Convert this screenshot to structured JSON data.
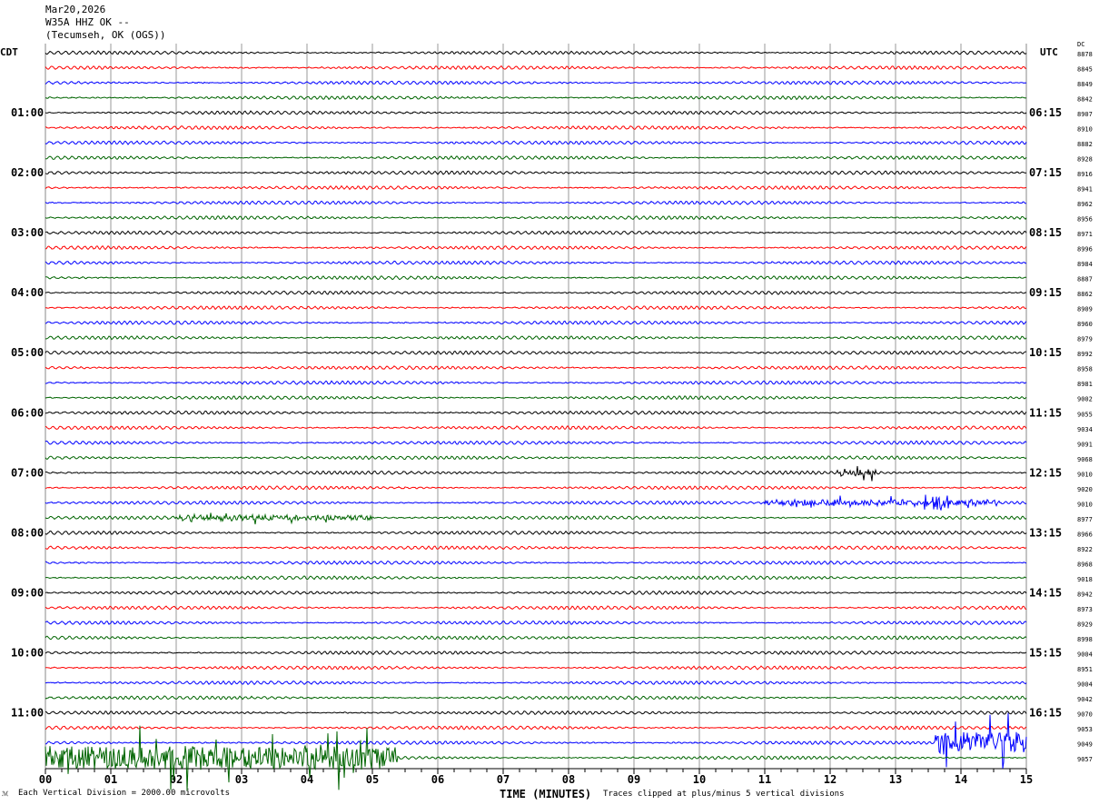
{
  "header": {
    "date": "Mar20,2026",
    "station": "W35A HHZ OK --",
    "location": "(Tecumseh, OK (OGS))"
  },
  "footer": {
    "scale_note": "Each Vertical Division = 2000.00 microvolts",
    "clip_note": "Traces clipped at plus/minus 5 vertical divisions"
  },
  "chart_data": {
    "type": "line",
    "title": "",
    "xlabel": "TIME (MINUTES)",
    "xlim": [
      0,
      15
    ],
    "x_ticks": [
      "00",
      "01",
      "02",
      "03",
      "04",
      "05",
      "06",
      "07",
      "08",
      "09",
      "10",
      "11",
      "12",
      "13",
      "14",
      "15"
    ],
    "grid": true,
    "left_axis_title": "CDT",
    "right_axis_title": "UTC",
    "dc_header": "DC",
    "left_labels": [
      "01:00",
      "02:00",
      "03:00",
      "04:00",
      "05:00",
      "06:00",
      "07:00",
      "08:00",
      "09:00",
      "10:00",
      "11:00"
    ],
    "right_labels": [
      "06:15",
      "07:15",
      "08:15",
      "09:15",
      "10:15",
      "11:15",
      "12:15",
      "13:15",
      "14:15",
      "15:15",
      "16:15"
    ],
    "trace_colors": [
      "#000000",
      "#ff0000",
      "#0000ff",
      "#006400"
    ],
    "dc_offsets": [
      8878,
      8845,
      8849,
      8842,
      8907,
      8910,
      8882,
      8928,
      8916,
      8941,
      8962,
      8956,
      8971,
      8996,
      8984,
      8887,
      8862,
      8909,
      8960,
      8979,
      8992,
      8958,
      8981,
      9002,
      9055,
      9034,
      9091,
      9068,
      9010,
      9020,
      9010,
      8977,
      8966,
      8922,
      8968,
      9018,
      8942,
      8973,
      8929,
      8998,
      9004,
      8951,
      9004,
      9042,
      9070,
      9053,
      9049,
      9057
    ],
    "events": [
      {
        "trace": 28,
        "start_min": 12.1,
        "end_min": 12.7,
        "amplitude_div": 0.35
      },
      {
        "trace": 30,
        "start_min": 11.0,
        "end_min": 14.6,
        "amplitude_div": 0.35
      },
      {
        "trace": 30,
        "start_min": 13.55,
        "end_min": 13.75,
        "amplitude_div": 0.8
      },
      {
        "trace": 31,
        "start_min": 2.0,
        "end_min": 5.0,
        "amplitude_div": 0.3
      },
      {
        "trace": 46,
        "start_min": 13.6,
        "end_min": 15.0,
        "amplitude_div": 1.4
      },
      {
        "trace": 47,
        "start_min": 0.0,
        "end_min": 5.4,
        "amplitude_div": 1.5
      }
    ]
  }
}
